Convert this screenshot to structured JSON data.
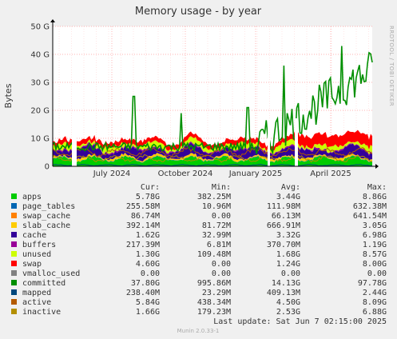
{
  "chart_data": {
    "type": "area",
    "title": "Memory usage - by year",
    "ylabel": "Bytes",
    "ylim": [
      0,
      50000000000
    ],
    "y_ticks": [
      "0",
      "10 G",
      "20 G",
      "30 G",
      "40 G",
      "50 G"
    ],
    "x_ticks": [
      "July 2024",
      "October 2024",
      "January 2025",
      "April 2025"
    ],
    "grid": true,
    "side_label": "RRDTOOL / TOBI OETIKER",
    "legend_headers": [
      "Cur:",
      "Min:",
      "Avg:",
      "Max:"
    ],
    "series": [
      {
        "name": "apps",
        "color": "#00cc00",
        "cur": "5.78G",
        "min": "382.25M",
        "avg": "3.44G",
        "max": "8.86G"
      },
      {
        "name": "page_tables",
        "color": "#0066b3",
        "cur": "255.58M",
        "min": "10.96M",
        "avg": "111.98M",
        "max": "632.38M"
      },
      {
        "name": "swap_cache",
        "color": "#ff8000",
        "cur": "86.74M",
        "min": "0.00",
        "avg": "66.13M",
        "max": "641.54M"
      },
      {
        "name": "slab_cache",
        "color": "#ffcc00",
        "cur": "392.14M",
        "min": "81.72M",
        "avg": "666.91M",
        "max": "3.05G"
      },
      {
        "name": "cache",
        "color": "#330099",
        "cur": "1.62G",
        "min": "32.99M",
        "avg": "3.32G",
        "max": "6.98G"
      },
      {
        "name": "buffers",
        "color": "#990099",
        "cur": "217.39M",
        "min": "6.81M",
        "avg": "370.70M",
        "max": "1.19G"
      },
      {
        "name": "unused",
        "color": "#ccff00",
        "cur": "1.30G",
        "min": "109.48M",
        "avg": "1.68G",
        "max": "8.57G"
      },
      {
        "name": "swap",
        "color": "#ff0000",
        "cur": "4.60G",
        "min": "0.00",
        "avg": "1.24G",
        "max": "8.00G"
      },
      {
        "name": "vmalloc_used",
        "color": "#808080",
        "cur": "0.00",
        "min": "0.00",
        "avg": "0.00",
        "max": "0.00"
      },
      {
        "name": "committed",
        "color": "#008f00",
        "cur": "37.80G",
        "min": "995.86M",
        "avg": "14.13G",
        "max": "97.78G"
      },
      {
        "name": "mapped",
        "color": "#00487d",
        "cur": "238.40M",
        "min": "23.29M",
        "avg": "409.13M",
        "max": "2.44G"
      },
      {
        "name": "active",
        "color": "#b35a00",
        "cur": "5.84G",
        "min": "438.34M",
        "avg": "4.50G",
        "max": "8.09G"
      },
      {
        "name": "inactive",
        "color": "#b38f00",
        "cur": "1.66G",
        "min": "179.23M",
        "avg": "2.53G",
        "max": "6.88G"
      }
    ],
    "last_update": "Last update:  Sat Jun  7 02:15:00 2025",
    "footer": "Munin 2.0.33-1"
  }
}
